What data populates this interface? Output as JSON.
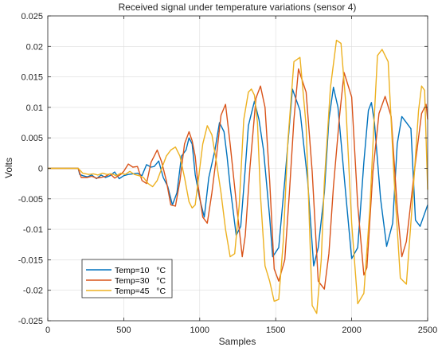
{
  "chart_data": {
    "type": "line",
    "title": "Received signal under temperature variations (sensor 4)",
    "xlabel": "Samples",
    "ylabel": "Volts",
    "xlim": [
      0,
      2500
    ],
    "ylim": [
      -0.025,
      0.025
    ],
    "grid": true,
    "legend_position": "bottom-left",
    "x_ticks": [
      0,
      500,
      1000,
      1500,
      2000,
      2500
    ],
    "x_tick_labels": [
      "0",
      "500",
      "1000",
      "1500",
      "2000",
      "2500"
    ],
    "y_ticks": [
      -0.025,
      -0.02,
      -0.015,
      -0.01,
      -0.005,
      0,
      0.005,
      0.01,
      0.015,
      0.02,
      0.025
    ],
    "y_tick_labels": [
      "-0.025",
      "-0.02",
      "-0.015",
      "-0.01",
      "-0.005",
      "0",
      "0.005",
      "0.01",
      "0.015",
      "0.02",
      "0.025"
    ],
    "series": [
      {
        "name": "Temp=10   °C",
        "color": "#0072BD",
        "x": [
          0,
          200,
          210,
          230,
          260,
          290,
          320,
          350,
          380,
          410,
          440,
          470,
          500,
          530,
          560,
          590,
          620,
          650,
          680,
          700,
          730,
          760,
          790,
          820,
          850,
          880,
          910,
          930,
          950,
          970,
          1000,
          1030,
          1060,
          1100,
          1130,
          1160,
          1180,
          1200,
          1240,
          1270,
          1300,
          1320,
          1360,
          1390,
          1420,
          1460,
          1480,
          1520,
          1560,
          1590,
          1610,
          1660,
          1710,
          1750,
          1780,
          1820,
          1850,
          1880,
          1910,
          1960,
          2000,
          2040,
          2080,
          2110,
          2130,
          2150,
          2190,
          2230,
          2270,
          2300,
          2330,
          2390,
          2420,
          2450,
          2500
        ],
        "y": [
          0,
          0,
          -0.001,
          -0.0012,
          -0.0014,
          -0.0011,
          -0.0017,
          -0.0011,
          -0.0015,
          -0.0012,
          -0.0006,
          -0.0017,
          -0.0012,
          -0.001,
          -0.0009,
          -0.0008,
          -0.0012,
          0.0006,
          0.0002,
          0.0003,
          0.0012,
          -0.0015,
          -0.003,
          -0.006,
          -0.004,
          0.002,
          0.003,
          0.005,
          0.004,
          -0.001,
          -0.005,
          -0.008,
          -0.0015,
          0.003,
          0.0075,
          0.006,
          0.002,
          -0.003,
          -0.011,
          -0.0095,
          0,
          0.007,
          0.011,
          0.008,
          0.003,
          -0.008,
          -0.0145,
          -0.013,
          -0.002,
          0.007,
          0.013,
          0.0095,
          -0.002,
          -0.016,
          -0.013,
          -0.004,
          0.008,
          0.0133,
          0.01,
          -0.004,
          -0.0148,
          -0.013,
          0.001,
          0.0095,
          0.0108,
          0.0075,
          -0.005,
          -0.0128,
          -0.009,
          0.004,
          0.0085,
          0.0065,
          -0.0085,
          -0.0095,
          -0.006
        ]
      },
      {
        "name": "Temp=30   °C",
        "color": "#D95319",
        "x": [
          0,
          200,
          220,
          260,
          290,
          320,
          350,
          380,
          410,
          440,
          480,
          500,
          530,
          560,
          590,
          620,
          650,
          680,
          700,
          720,
          750,
          780,
          810,
          840,
          870,
          900,
          930,
          950,
          970,
          990,
          1020,
          1050,
          1080,
          1110,
          1140,
          1170,
          1200,
          1240,
          1280,
          1300,
          1330,
          1370,
          1400,
          1430,
          1460,
          1490,
          1520,
          1560,
          1590,
          1620,
          1650,
          1700,
          1740,
          1780,
          1820,
          1850,
          1880,
          1920,
          1950,
          2000,
          2040,
          2080,
          2100,
          2140,
          2180,
          2220,
          2260,
          2300,
          2330,
          2360,
          2420,
          2460,
          2490,
          2500
        ],
        "y": [
          0,
          0,
          -0.0015,
          -0.0015,
          -0.0013,
          -0.0016,
          -0.0015,
          -0.0013,
          -0.0009,
          -0.0016,
          -0.001,
          -0.0005,
          0.0007,
          0.0002,
          0.0003,
          -0.002,
          -0.0025,
          0.001,
          0.002,
          0.003,
          0.001,
          -0.002,
          -0.006,
          -0.0062,
          -0.002,
          0.004,
          0.006,
          0.0045,
          0.002,
          -0.003,
          -0.008,
          -0.009,
          -0.004,
          0.002,
          0.0087,
          0.0105,
          0.004,
          -0.0055,
          -0.0145,
          -0.011,
          0,
          0.0115,
          0.0135,
          0.01,
          -0.002,
          -0.0165,
          -0.0185,
          -0.015,
          -0.004,
          0.008,
          0.0163,
          0.0125,
          -0.0005,
          -0.0185,
          -0.0198,
          -0.014,
          -0.003,
          0.0085,
          0.0157,
          0.0117,
          -0.006,
          -0.0175,
          -0.0163,
          -0.0005,
          0.009,
          0.0118,
          0.0085,
          -0.0065,
          -0.0145,
          -0.012,
          0.001,
          0.009,
          0.0105,
          0.008
        ]
      },
      {
        "name": "Temp=45   °C",
        "color": "#EDB120",
        "x": [
          0,
          200,
          230,
          270,
          300,
          330,
          360,
          390,
          420,
          450,
          480,
          510,
          540,
          570,
          600,
          630,
          660,
          690,
          720,
          750,
          780,
          810,
          840,
          870,
          900,
          930,
          950,
          970,
          990,
          1020,
          1050,
          1080,
          1110,
          1140,
          1170,
          1200,
          1230,
          1260,
          1290,
          1320,
          1340,
          1360,
          1380,
          1400,
          1430,
          1460,
          1490,
          1520,
          1550,
          1580,
          1620,
          1660,
          1700,
          1740,
          1770,
          1800,
          1820,
          1860,
          1900,
          1930,
          1960,
          2000,
          2040,
          2080,
          2120,
          2150,
          2170,
          2200,
          2240,
          2280,
          2320,
          2360,
          2400,
          2440,
          2460,
          2480,
          2500
        ],
        "y": [
          0,
          0,
          -0.0008,
          -0.001,
          -0.0009,
          -0.0011,
          -0.0008,
          -0.001,
          -0.0009,
          -0.0012,
          -0.0008,
          -0.001,
          -0.0005,
          -0.001,
          -0.0012,
          -0.0015,
          -0.0025,
          -0.003,
          -0.002,
          0,
          0.002,
          0.003,
          0.0035,
          0.002,
          -0.0015,
          -0.0055,
          -0.0065,
          -0.006,
          -0.002,
          0.004,
          0.007,
          0.0055,
          0.001,
          -0.004,
          -0.01,
          -0.0145,
          -0.014,
          -0.006,
          0.008,
          0.0125,
          0.013,
          0.012,
          0.0075,
          -0.0045,
          -0.016,
          -0.0185,
          -0.0218,
          -0.0215,
          -0.012,
          0.0045,
          0.0175,
          0.0182,
          0.007,
          -0.0225,
          -0.0238,
          -0.015,
          -0.0022,
          0.0132,
          0.021,
          0.0205,
          0.011,
          -0.009,
          -0.0222,
          -0.0205,
          -0.0065,
          0.009,
          0.0185,
          0.0195,
          0.0175,
          -0.002,
          -0.018,
          -0.019,
          -0.0055,
          0.0095,
          0.0135,
          0.0128,
          -0.0035
        ]
      }
    ]
  }
}
